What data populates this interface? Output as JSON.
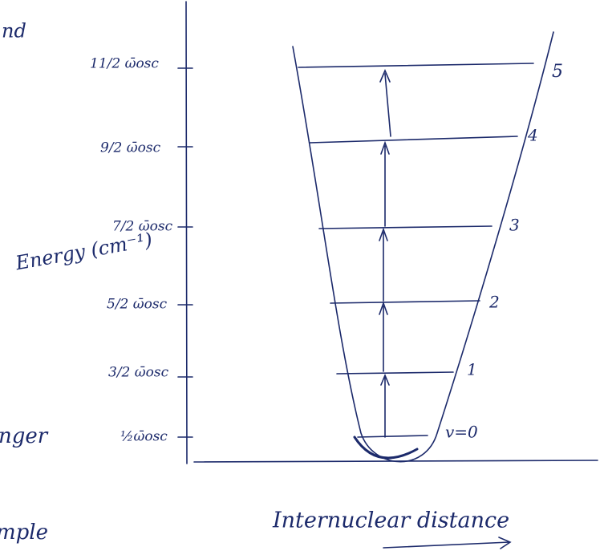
{
  "y_axis": {
    "label": "Energy (cm⁻¹)",
    "ticks": [
      "½ω̄osc",
      "3/2 ω̄osc",
      "5/2 ω̄osc",
      "7/2 ω̄osc",
      "9/2 ω̄osc",
      "11/2 ω̄osc"
    ]
  },
  "levels": [
    "v=0",
    "1",
    "2",
    "3",
    "4",
    "5"
  ],
  "x_axis": {
    "label": "Internuclear distance"
  },
  "margin_fragments": [
    "nd",
    "nger",
    "mple"
  ]
}
